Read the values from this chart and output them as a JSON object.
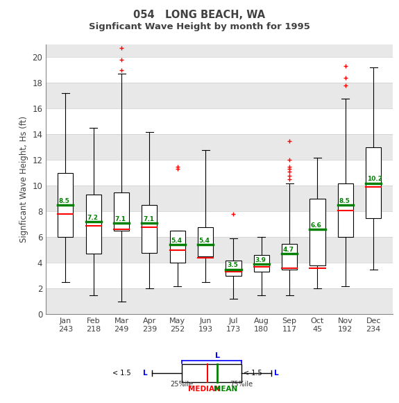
{
  "title1": "054   LONG BEACH, WA",
  "title2": "Signficant Wave Height by month for 1995",
  "ylabel": "Signficant Wave Height, Hs (ft)",
  "months": [
    "Jan",
    "Feb",
    "Mar",
    "Apr",
    "May",
    "Jun",
    "Jul",
    "Aug",
    "Sep",
    "Oct",
    "Nov",
    "Dec"
  ],
  "counts": [
    243,
    218,
    249,
    239,
    252,
    193,
    173,
    180,
    117,
    45,
    192,
    234
  ],
  "boxes": {
    "Jan": {
      "q1": 6.0,
      "median": 7.8,
      "q3": 11.0,
      "mean": 8.5,
      "wlo": 2.5,
      "whi": 17.2,
      "outliers": []
    },
    "Feb": {
      "q1": 4.7,
      "median": 6.9,
      "q3": 9.3,
      "mean": 7.2,
      "wlo": 1.5,
      "whi": 14.5,
      "outliers": []
    },
    "Mar": {
      "q1": 6.5,
      "median": 6.6,
      "q3": 9.5,
      "mean": 7.1,
      "wlo": 1.0,
      "whi": 18.7,
      "outliers": [
        19.0,
        19.8,
        20.7
      ]
    },
    "Apr": {
      "q1": 4.8,
      "median": 6.8,
      "q3": 8.5,
      "mean": 7.1,
      "wlo": 2.0,
      "whi": 14.2,
      "outliers": []
    },
    "May": {
      "q1": 4.0,
      "median": 5.0,
      "q3": 6.5,
      "mean": 5.4,
      "wlo": 2.2,
      "whi": 6.5,
      "outliers": [
        11.3,
        11.5
      ]
    },
    "Jun": {
      "q1": 4.5,
      "median": 4.4,
      "q3": 6.8,
      "mean": 5.4,
      "wlo": 2.5,
      "whi": 12.8,
      "outliers": []
    },
    "Jul": {
      "q1": 3.0,
      "median": 3.3,
      "q3": 4.2,
      "mean": 3.5,
      "wlo": 1.2,
      "whi": 5.9,
      "outliers": [
        7.8
      ]
    },
    "Aug": {
      "q1": 3.3,
      "median": 3.7,
      "q3": 4.6,
      "mean": 3.9,
      "wlo": 1.5,
      "whi": 6.0,
      "outliers": []
    },
    "Sep": {
      "q1": 3.5,
      "median": 3.6,
      "q3": 5.5,
      "mean": 4.7,
      "wlo": 1.5,
      "whi": 10.2,
      "outliers": [
        10.5,
        10.8,
        11.1,
        11.3,
        11.5,
        12.0,
        13.5
      ]
    },
    "Oct": {
      "q1": 3.8,
      "median": 3.6,
      "q3": 9.0,
      "mean": 6.6,
      "wlo": 2.0,
      "whi": 12.2,
      "outliers": []
    },
    "Nov": {
      "q1": 6.0,
      "median": 8.1,
      "q3": 10.2,
      "mean": 8.5,
      "wlo": 2.2,
      "whi": 16.8,
      "outliers": [
        17.8,
        18.4,
        19.3
      ]
    },
    "Dec": {
      "q1": 7.5,
      "median": 9.9,
      "q3": 13.0,
      "mean": 10.2,
      "wlo": 3.5,
      "whi": 19.2,
      "outliers": []
    }
  },
  "ylim": [
    0,
    21
  ],
  "yticks": [
    0,
    2,
    4,
    6,
    8,
    10,
    12,
    14,
    16,
    18,
    20
  ],
  "band_colors": [
    "#ffffff",
    "#e8e8e8"
  ],
  "box_facecolor": "white",
  "box_edgecolor": "black",
  "median_color": "red",
  "mean_color": "green",
  "outlier_color": "red",
  "whisker_color": "black",
  "title_color": "#404040",
  "tick_label_color": "#404040"
}
